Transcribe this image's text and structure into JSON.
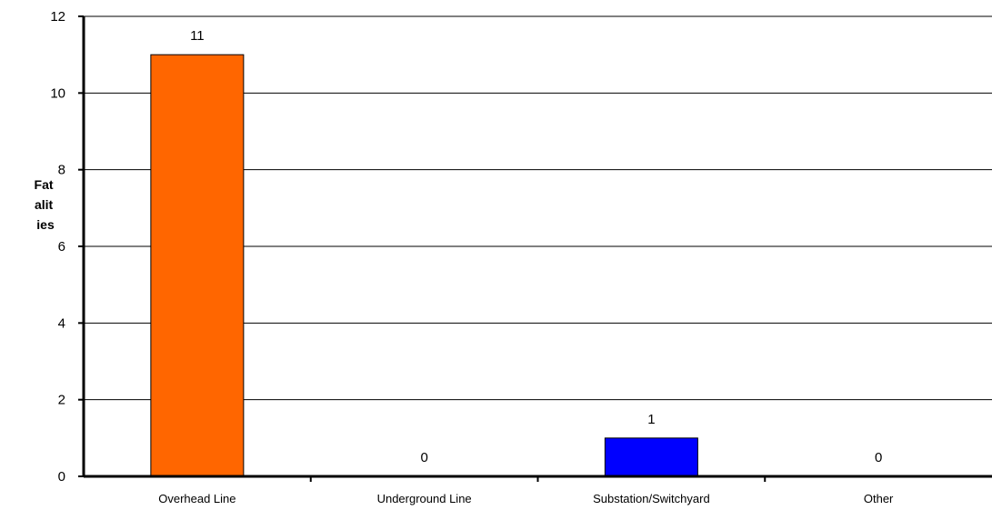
{
  "chart_data": {
    "type": "bar",
    "categories": [
      "Overhead Line",
      "Underground Line",
      "Substation/Switchyard",
      "Other"
    ],
    "values": [
      11,
      0,
      1,
      0
    ],
    "bar_colors": [
      "#ff6600",
      "#ff6600",
      "#0000ff",
      "#0000ff"
    ],
    "title": "",
    "xlabel": "",
    "ylabel": "Fatalities",
    "ylabel_lines": [
      "Fat",
      "alit",
      "ies"
    ],
    "ylim": [
      0,
      12
    ],
    "yticks": [
      "0",
      "2",
      "4",
      "6",
      "8",
      "10",
      "12"
    ],
    "grid": true,
    "legend": "none"
  }
}
